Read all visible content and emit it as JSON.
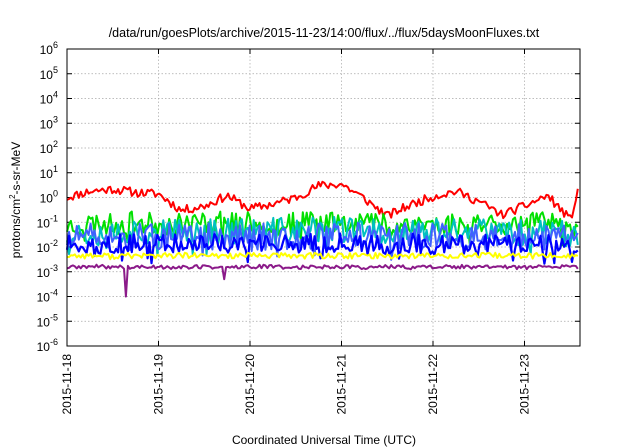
{
  "chart_data": {
    "type": "line",
    "title": "/data/run/goesPlots/archive/2015-11-23/14:00/flux/../flux/5daysMoonFluxes.txt",
    "xlabel": "Coordinated Universal Time (UTC)",
    "ylabel": {
      "pre": "protons/cm",
      "sup": "2",
      "post": "-s-sr-MeV"
    },
    "yscale": "log",
    "ylim": [
      1e-06,
      1000000.0
    ],
    "xlim": [
      "2015-11-18",
      "2015-11-23 14:00"
    ],
    "grid": true,
    "legend": "none",
    "x_ticks": [
      "2015-11-18",
      "2015-11-19",
      "2015-11-20",
      "2015-11-21",
      "2015-11-22",
      "2015-11-23"
    ],
    "y_ticks": [
      {
        "value": 1e-06,
        "base": "10",
        "exp": "-6"
      },
      {
        "value": 1e-05,
        "base": "10",
        "exp": "-5"
      },
      {
        "value": 0.0001,
        "base": "10",
        "exp": "-4"
      },
      {
        "value": 0.001,
        "base": "10",
        "exp": "-3"
      },
      {
        "value": 0.01,
        "base": "10",
        "exp": "-2"
      },
      {
        "value": 0.1,
        "base": "10",
        "exp": "-1"
      },
      {
        "value": 1,
        "base": "10",
        "exp": "0"
      },
      {
        "value": 10,
        "base": "10",
        "exp": "1"
      },
      {
        "value": 100,
        "base": "10",
        "exp": "2"
      },
      {
        "value": 1000,
        "base": "10",
        "exp": "3"
      },
      {
        "value": 10000,
        "base": "10",
        "exp": "4"
      },
      {
        "value": 100000,
        "base": "10",
        "exp": "5"
      },
      {
        "value": 1000000,
        "base": "10",
        "exp": "6"
      }
    ],
    "x_days": [
      0,
      0.25,
      0.5,
      0.75,
      1,
      1.25,
      1.5,
      1.75,
      2,
      2.25,
      2.5,
      2.75,
      3,
      3.25,
      3.5,
      3.75,
      4,
      4.25,
      4.5,
      4.75,
      5,
      5.25,
      5.5,
      5.583
    ],
    "series": [
      {
        "color": "#ff0000",
        "width": 2,
        "jitter": 0.18,
        "seed": 11,
        "values": [
          1.0,
          1.8,
          2.2,
          1.6,
          1.4,
          0.3,
          0.45,
          1.2,
          0.35,
          0.55,
          1.0,
          3.0,
          3.5,
          0.9,
          0.18,
          0.5,
          1.1,
          1.8,
          0.7,
          0.2,
          0.45,
          1.2,
          0.13,
          1.5
        ]
      },
      {
        "color": "#00e000",
        "width": 2,
        "jitter": 0.45,
        "seed": 23,
        "values": [
          0.07,
          0.09,
          0.08,
          0.1,
          0.08,
          0.09,
          0.1,
          0.12,
          0.09,
          0.1,
          0.11,
          0.1,
          0.12,
          0.11,
          0.09,
          0.1,
          0.08,
          0.09,
          0.1,
          0.09,
          0.08,
          0.1,
          0.07,
          0.08
        ]
      },
      {
        "color": "#00c0c0",
        "width": 2,
        "jitter": 0.55,
        "seed": 37,
        "values": [
          0.035,
          0.04,
          0.04,
          0.045,
          0.04,
          0.04,
          0.045,
          0.05,
          0.04,
          0.045,
          0.05,
          0.045,
          0.05,
          0.045,
          0.04,
          0.045,
          0.04,
          0.04,
          0.045,
          0.04,
          0.04,
          0.045,
          0.035,
          0.04
        ]
      },
      {
        "color": "#4060ff",
        "width": 2,
        "jitter": 0.55,
        "seed": 51,
        "values": [
          0.022,
          0.025,
          0.024,
          0.026,
          0.025,
          0.024,
          0.026,
          0.028,
          0.024,
          0.026,
          0.028,
          0.026,
          0.03,
          0.027,
          0.024,
          0.026,
          0.024,
          0.025,
          0.026,
          0.024,
          0.024,
          0.026,
          0.022,
          0.025
        ]
      },
      {
        "color": "#0000ff",
        "width": 2.2,
        "jitter": 0.4,
        "seed": 63,
        "values": [
          0.012,
          0.013,
          0.013,
          0.014,
          0.013,
          0.013,
          0.014,
          0.015,
          0.013,
          0.014,
          0.015,
          0.014,
          0.016,
          0.015,
          0.013,
          0.014,
          0.013,
          0.013,
          0.014,
          0.013,
          0.013,
          0.014,
          0.012,
          0.013
        ]
      },
      {
        "color": "#ffff00",
        "width": 2,
        "jitter": 0.12,
        "seed": 77,
        "values": [
          0.0045,
          0.0045,
          0.0042,
          0.0045,
          0.0044,
          0.0045,
          0.0043,
          0.0045,
          0.0044,
          0.0045,
          0.0044,
          0.0045,
          0.0043,
          0.0045,
          0.0044,
          0.0045,
          0.0044,
          0.0045,
          0.0044,
          0.0045,
          0.0044,
          0.0045,
          0.0044,
          0.0045
        ]
      },
      {
        "color": "#8b1a89",
        "width": 2,
        "jitter": 0.08,
        "seed": 89,
        "values": [
          0.0015,
          0.0016,
          0.0016,
          0.0015,
          0.0016,
          0.0015,
          0.0016,
          0.0015,
          0.0016,
          0.0016,
          0.0015,
          0.0016,
          0.0016,
          0.0015,
          0.0016,
          0.0015,
          0.0016,
          0.0016,
          0.0015,
          0.0016,
          0.0015,
          0.0016,
          0.0016,
          0.0015
        ]
      }
    ],
    "dips": [
      {
        "day": 0.65,
        "value": 0.0001
      },
      {
        "day": 1.72,
        "value": 0.0005
      }
    ]
  }
}
